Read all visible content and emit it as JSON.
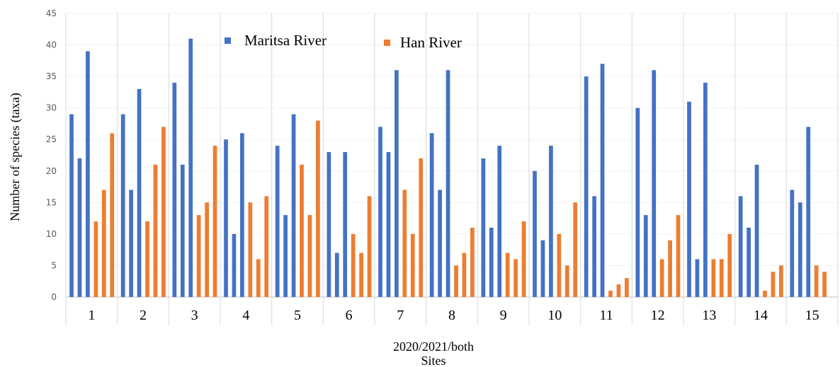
{
  "chart_data": {
    "type": "bar",
    "xlabel_line1": "2020/2021/both",
    "xlabel_line2": "Sites",
    "ylabel": "Number of species (taxa)",
    "ylim": [
      0,
      45
    ],
    "yticks": [
      0,
      5,
      10,
      15,
      20,
      25,
      30,
      35,
      40,
      45
    ],
    "grid": "vertical separators between sites",
    "legend_position": "top-center",
    "categories": [
      "1",
      "2",
      "3",
      "4",
      "5",
      "6",
      "7",
      "8",
      "9",
      "10",
      "11",
      "12",
      "13",
      "14",
      "15"
    ],
    "series": [
      {
        "name": "Maritsa River",
        "color": "#4472C4",
        "values": [
          [
            29,
            22,
            39
          ],
          [
            29,
            17,
            33
          ],
          [
            34,
            21,
            41
          ],
          [
            25,
            10,
            26
          ],
          [
            24,
            13,
            29
          ],
          [
            23,
            7,
            23
          ],
          [
            27,
            23,
            36
          ],
          [
            26,
            17,
            36
          ],
          [
            22,
            11,
            24
          ],
          [
            20,
            9,
            24
          ],
          [
            35,
            16,
            37
          ],
          [
            30,
            13,
            36
          ],
          [
            31,
            6,
            34
          ],
          [
            16,
            11,
            21
          ],
          [
            17,
            15,
            27
          ]
        ]
      },
      {
        "name": "Han River",
        "color": "#ED7D31",
        "values": [
          [
            12,
            17,
            26
          ],
          [
            12,
            21,
            27
          ],
          [
            13,
            15,
            24
          ],
          [
            15,
            6,
            16
          ],
          [
            21,
            13,
            28
          ],
          [
            10,
            7,
            16
          ],
          [
            17,
            10,
            22
          ],
          [
            5,
            7,
            11
          ],
          [
            7,
            6,
            12
          ],
          [
            10,
            5,
            15
          ],
          [
            1,
            2,
            3
          ],
          [
            6,
            9,
            13
          ],
          [
            6,
            6,
            10
          ],
          [
            1,
            4,
            5
          ],
          [
            5,
            4,
            null
          ]
        ]
      }
    ]
  }
}
